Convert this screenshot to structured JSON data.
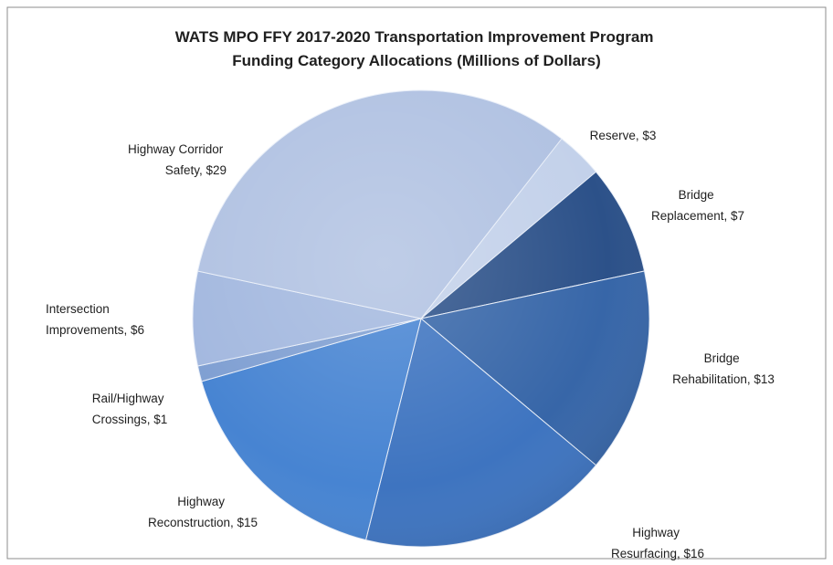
{
  "chart_data": {
    "type": "pie",
    "title": "WATS MPO FFY 2017-2020 Transportation Improvement Program Funding Category Allocations (Millions of Dollars)",
    "categories": [
      "Reserve",
      "Bridge Replacement",
      "Bridge Rehabilitation",
      "Highway Resurfacing",
      "Highway Reconstruction",
      "Rail/Highway Crossings",
      "Intersection Improvements",
      "Highway Corridor Safety"
    ],
    "values": [
      3,
      7,
      13,
      16,
      15,
      1,
      6,
      29
    ],
    "value_labels": [
      "Reserve, $3",
      "Bridge Replacement, $7",
      "Bridge Rehabilitation, $13",
      "Highway Resurfacing, $16",
      "Highway Reconstruction, $15",
      "Rail/Highway Crossings, $1",
      "Intersection Improvements, $6",
      "Highway Corridor Safety, $29"
    ],
    "colors": [
      "#c3d1ea",
      "#2c5189",
      "#3766a8",
      "#3e74c0",
      "#4784d2",
      "#7f9fd2",
      "#a3b8df",
      "#b1c2e2"
    ]
  }
}
